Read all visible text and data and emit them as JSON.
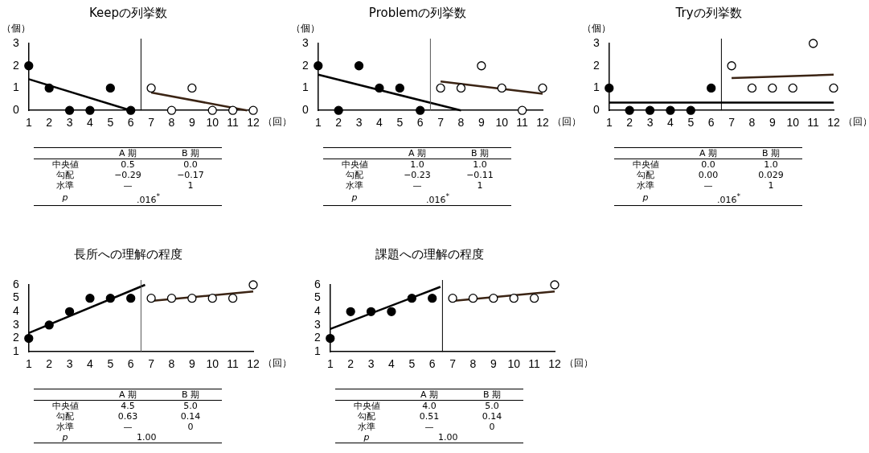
{
  "chart_data": [
    {
      "type": "scatter",
      "title": "Keepの列挙数",
      "xlabel": "（回）",
      "ylabel": "（個）",
      "xlim": [
        1,
        12
      ],
      "xticks": [
        1,
        2,
        3,
        4,
        5,
        6,
        7,
        8,
        9,
        10,
        11,
        12
      ],
      "ylim": [
        0,
        3
      ],
      "yticks": [
        0,
        1,
        2,
        3
      ],
      "grid": false,
      "legend": false,
      "marker": "circle",
      "series": [
        {
          "color": "#000000",
          "x": [
            1,
            2,
            3,
            4,
            5,
            6
          ],
          "values": [
            2,
            1,
            0,
            0,
            1,
            0
          ]
        },
        {
          "color": "#000000",
          "x": [
            7,
            8,
            9,
            10,
            11,
            12
          ],
          "values": [
            1,
            0,
            1,
            0,
            0,
            0
          ]
        },
        {
          "type": "line",
          "marker": "none",
          "color": "#000000",
          "x": [
            1,
            6
          ],
          "values": [
            1.4,
            0
          ]
        },
        {
          "type": "line",
          "marker": "none",
          "color": "#3b2414",
          "x": [
            7,
            11.7
          ],
          "values": [
            0.8,
            0
          ]
        }
      ],
      "ref_lines": [
        {
          "axis": "x",
          "value": 6.5,
          "color": "#000000"
        }
      ],
      "annotations": [
        "A 期",
        "B 期",
        "中央値",
        "0.5",
        "0.0",
        "勾配",
        "−0.29",
        "−0.17",
        "水準",
        "—",
        "1",
        "p",
        ".016$^{*}$"
      ]
    },
    {
      "type": "scatter",
      "title": "Problemの列挙数",
      "xlabel": "（回）",
      "ylabel": "（個）",
      "xlim": [
        1,
        12
      ],
      "xticks": [
        1,
        2,
        3,
        4,
        5,
        6,
        7,
        8,
        9,
        10,
        11,
        12
      ],
      "ylim": [
        0,
        3
      ],
      "yticks": [
        0,
        1,
        2,
        3
      ],
      "grid": false,
      "legend": false,
      "marker": "circle",
      "series": [
        {
          "color": "#000000",
          "x": [
            1,
            2,
            3,
            4,
            5,
            6
          ],
          "values": [
            2,
            0,
            2,
            1,
            1,
            0
          ]
        },
        {
          "color": "#000000",
          "x": [
            7,
            8,
            9,
            10,
            11,
            12
          ],
          "values": [
            1,
            1,
            2,
            1,
            0,
            1
          ]
        },
        {
          "type": "line",
          "marker": "none",
          "color": "#000000",
          "x": [
            1,
            8
          ],
          "values": [
            1.6,
            0
          ]
        },
        {
          "type": "line",
          "marker": "none",
          "color": "#3b2414",
          "x": [
            7,
            12
          ],
          "values": [
            1.3,
            0.75
          ]
        }
      ],
      "ref_lines": [
        {
          "axis": "x",
          "value": 6.5,
          "color": "#555555"
        }
      ],
      "annotations": [
        "A 期",
        "B 期",
        "中央値",
        "1.0",
        "1.0",
        "勾配",
        "−0.23",
        "−0.11",
        "水準",
        "—",
        "1",
        "p",
        ".016$^{*}$"
      ]
    },
    {
      "type": "scatter",
      "title": "Tryの列挙数",
      "xlabel": "（回）",
      "ylabel": "（個）",
      "xlim": [
        1,
        12
      ],
      "xticks": [
        1,
        2,
        3,
        4,
        5,
        6,
        7,
        8,
        9,
        10,
        11,
        12
      ],
      "ylim": [
        0,
        3
      ],
      "yticks": [
        0,
        1,
        2,
        3
      ],
      "grid": false,
      "legend": false,
      "marker": "circle",
      "series": [
        {
          "color": "#000000",
          "x": [
            1,
            2,
            3,
            4,
            5,
            6
          ],
          "values": [
            1,
            0,
            0,
            0,
            0,
            1
          ]
        },
        {
          "color": "#000000",
          "x": [
            7,
            8,
            9,
            10,
            11,
            12
          ],
          "values": [
            2,
            1,
            1,
            1,
            3,
            1
          ]
        },
        {
          "type": "line",
          "marker": "none",
          "color": "#000000",
          "x": [
            1,
            12
          ],
          "values": [
            0.35,
            0.35
          ]
        },
        {
          "type": "line",
          "marker": "none",
          "color": "#3b2414",
          "x": [
            7,
            12
          ],
          "values": [
            1.45,
            1.6
          ]
        }
      ],
      "ref_lines": [
        {
          "axis": "x",
          "value": 6.5,
          "color": "#000000"
        }
      ],
      "annotations": [
        "A 期",
        "B 期",
        "中央値",
        "0.0",
        "1.0",
        "勾配",
        "0.00",
        "0.029",
        "水準",
        "—",
        "1",
        "p",
        ".016$^{*}$"
      ]
    },
    {
      "type": "scatter",
      "title": "長所への理解の程度",
      "xlabel": "（回）",
      "xlim": [
        1,
        12
      ],
      "xticks": [
        1,
        2,
        3,
        4,
        5,
        6,
        7,
        8,
        9,
        10,
        11,
        12
      ],
      "ylim": [
        1,
        6
      ],
      "yticks": [
        1,
        2,
        3,
        4,
        5,
        6
      ],
      "grid": false,
      "legend": false,
      "marker": "circle",
      "series": [
        {
          "color": "#000000",
          "x": [
            1,
            2,
            3,
            4,
            5,
            6
          ],
          "values": [
            2,
            3,
            4,
            5,
            5,
            5
          ]
        },
        {
          "color": "#000000",
          "x": [
            7,
            8,
            9,
            10,
            11,
            12
          ],
          "values": [
            5,
            5,
            5,
            5,
            5,
            6
          ]
        },
        {
          "type": "line",
          "marker": "none",
          "color": "#000000",
          "x": [
            1,
            6.7
          ],
          "values": [
            2.4,
            6
          ]
        },
        {
          "type": "line",
          "marker": "none",
          "color": "#3b2414",
          "x": [
            7,
            12
          ],
          "values": [
            4.8,
            5.5
          ]
        }
      ],
      "ref_lines": [
        {
          "axis": "x",
          "value": 6.5,
          "color": "#555555"
        }
      ],
      "annotations": [
        "A 期",
        "B 期",
        "中央値",
        "4.5",
        "5.0",
        "勾配",
        "0.63",
        "0.14",
        "水準",
        "—",
        "0",
        "p",
        "1.00"
      ]
    },
    {
      "type": "scatter",
      "title": "課題への理解の程度",
      "xlabel": "（回）",
      "xlim": [
        1,
        12
      ],
      "xticks": [
        1,
        2,
        3,
        4,
        5,
        6,
        7,
        8,
        9,
        10,
        11,
        12
      ],
      "ylim": [
        1,
        6
      ],
      "yticks": [
        1,
        2,
        3,
        4,
        5,
        6
      ],
      "grid": false,
      "legend": false,
      "marker": "circle",
      "series": [
        {
          "color": "#000000",
          "x": [
            1,
            2,
            3,
            4,
            5,
            6
          ],
          "values": [
            2,
            4,
            4,
            4,
            5,
            5
          ]
        },
        {
          "color": "#000000",
          "x": [
            7,
            8,
            9,
            10,
            11,
            12
          ],
          "values": [
            5,
            5,
            5,
            5,
            5,
            6
          ]
        },
        {
          "type": "line",
          "marker": "none",
          "color": "#000000",
          "x": [
            1,
            6.4
          ],
          "values": [
            2.7,
            5.85
          ]
        },
        {
          "type": "line",
          "marker": "none",
          "color": "#3b2414",
          "x": [
            7,
            12
          ],
          "values": [
            4.8,
            5.5
          ]
        }
      ],
      "ref_lines": [
        {
          "axis": "x",
          "value": 6.5,
          "color": "#000000"
        }
      ],
      "annotations": [
        "A 期",
        "B 期",
        "中央値",
        "4.0",
        "5.0",
        "勾配",
        "0.51",
        "0.14",
        "水準",
        "—",
        "0",
        "p",
        "1.00"
      ]
    }
  ]
}
